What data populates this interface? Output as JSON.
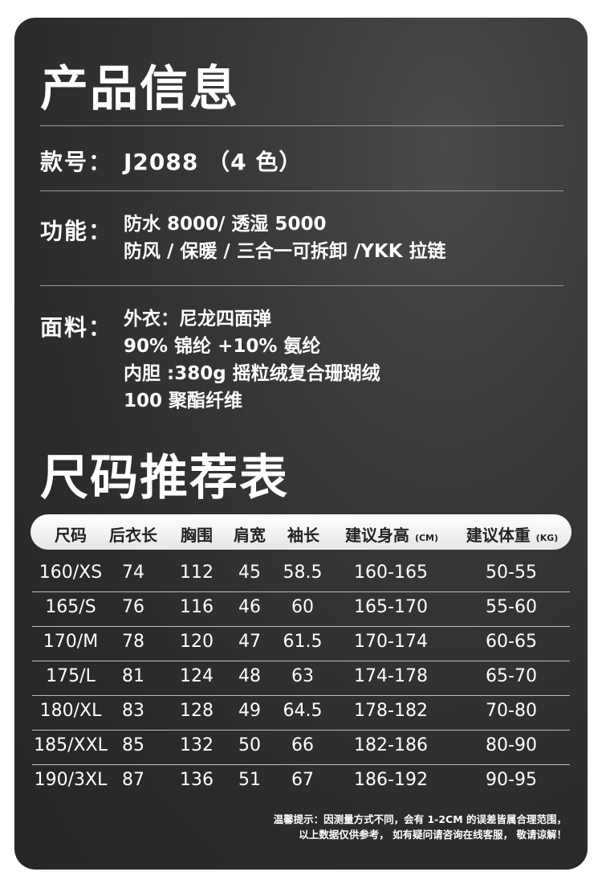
{
  "product_title": "产品信息",
  "model": {
    "label": "款号：",
    "value": "J2088 （4 色）"
  },
  "function": {
    "label": "功能：",
    "lines": [
      "防水 8000/ 透湿 5000",
      "防风 / 保暖 / 三合一可拆卸 /YKK 拉链"
    ]
  },
  "fabric": {
    "label": "面料：",
    "lines": [
      "外衣：尼龙四面弹",
      "90% 锦纶 +10% 氨纶",
      "内胆 :380g 摇粒绒复合珊瑚绒",
      "100 聚酯纤维"
    ]
  },
  "size_title": "尺码推荐表",
  "table": {
    "headers": [
      "尺码",
      "后衣长",
      "胸围",
      "肩宽",
      "袖长",
      "建议身高",
      "建议体重"
    ],
    "units": {
      "height": "(CM)",
      "weight": "(KG)"
    },
    "rows": [
      [
        "160/XS",
        "74",
        "112",
        "45",
        "58.5",
        "160-165",
        "50-55"
      ],
      [
        "165/S",
        "76",
        "116",
        "46",
        "60",
        "165-170",
        "55-60"
      ],
      [
        "170/M",
        "78",
        "120",
        "47",
        "61.5",
        "170-174",
        "60-65"
      ],
      [
        "175/L",
        "81",
        "124",
        "48",
        "63",
        "174-178",
        "65-70"
      ],
      [
        "180/XL",
        "83",
        "128",
        "49",
        "64.5",
        "178-182",
        "70-80"
      ],
      [
        "185/XXL",
        "85",
        "132",
        "50",
        "66",
        "182-186",
        "80-90"
      ],
      [
        "190/3XL",
        "87",
        "136",
        "51",
        "67",
        "186-192",
        "90-95"
      ]
    ]
  },
  "note": [
    "温馨提示：因测量方式不同，会有 1-2CM 的误差皆属合理范围，",
    "以上数据仅供参考， 如有疑问请咨询在线客服， 敬请谅解！"
  ],
  "colors": {
    "card": "#2b2b2b",
    "text": "#ffffff",
    "header_pill": "#ffffff"
  }
}
